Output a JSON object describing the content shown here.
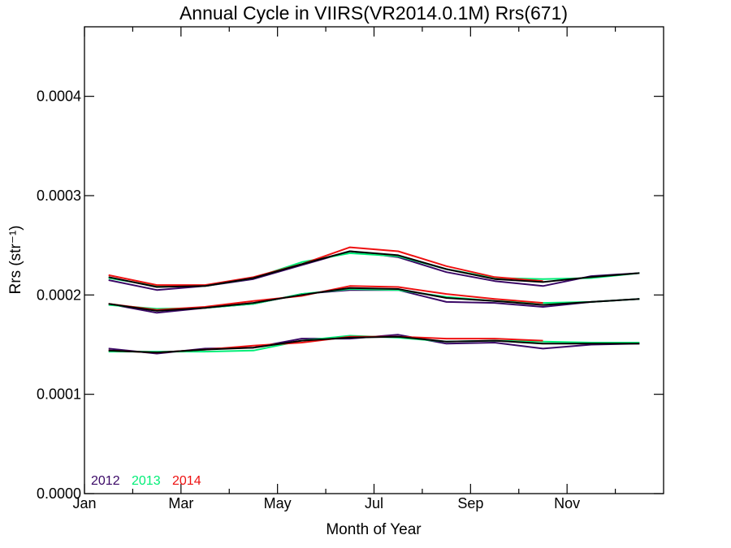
{
  "chart_data": {
    "type": "line",
    "title": "Annual Cycle in VIIRS(VR2014.0.1M) Rrs(671)",
    "xlabel": "Month of Year",
    "ylabel": "Rrs (str⁻¹)",
    "xlim": [
      0,
      12
    ],
    "ylim": [
      0.0,
      0.00047
    ],
    "x_ticks": [
      {
        "value": 0,
        "label": "Jan"
      },
      {
        "value": 2,
        "label": "Mar"
      },
      {
        "value": 4,
        "label": "May"
      },
      {
        "value": 6,
        "label": "Jul"
      },
      {
        "value": 8,
        "label": "Sep"
      },
      {
        "value": 10,
        "label": "Nov"
      }
    ],
    "y_ticks": [
      {
        "value": 0.0,
        "label": "0.0000"
      },
      {
        "value": 0.0001,
        "label": "0.0001"
      },
      {
        "value": 0.0002,
        "label": "0.0002"
      },
      {
        "value": 0.0003,
        "label": "0.0003"
      },
      {
        "value": 0.0004,
        "label": "0.0004"
      }
    ],
    "grid": false,
    "legend_position": "bottom-left",
    "legend": [
      {
        "label": "2012",
        "color": "#3a0866"
      },
      {
        "label": "2013",
        "color": "#00ee77"
      },
      {
        "label": "2014",
        "color": "#ee1111"
      }
    ],
    "series": [
      {
        "year": "2012",
        "color": "#3a0866",
        "group": "upper",
        "x": [
          0.5,
          1.5,
          2.5,
          3.5,
          4.5,
          5.5,
          6.5,
          7.5,
          8.5,
          9.5,
          10.5,
          11.5
        ],
        "values": [
          0.000215,
          0.000205,
          0.000209,
          0.000216,
          0.00023,
          0.000244,
          0.000238,
          0.000223,
          0.000214,
          0.000209,
          0.000219,
          0.000222
        ]
      },
      {
        "year": "2013",
        "color": "#00ee77",
        "group": "upper",
        "x": [
          0.5,
          1.5,
          2.5,
          3.5,
          4.5,
          5.5,
          6.5,
          7.5,
          8.5,
          9.5,
          10.5,
          11.5
        ],
        "values": [
          0.000217,
          0.000209,
          0.000209,
          0.000217,
          0.000233,
          0.000242,
          0.000239,
          0.000226,
          0.000217,
          0.000216,
          0.000217,
          0.000222
        ]
      },
      {
        "year": "2014",
        "color": "#ee1111",
        "group": "upper",
        "x": [
          0.5,
          1.5,
          2.5,
          3.5,
          4.5,
          5.5,
          6.5,
          7.5,
          8.5,
          9.5
        ],
        "values": [
          0.00022,
          0.00021,
          0.00021,
          0.000218,
          0.000231,
          0.000248,
          0.000244,
          0.000229,
          0.000218,
          0.000214
        ]
      },
      {
        "year": "mean",
        "color": "#000000",
        "group": "upper",
        "x": [
          0.5,
          1.5,
          2.5,
          3.5,
          4.5,
          5.5,
          6.5,
          7.5,
          8.5,
          9.5,
          10.5,
          11.5
        ],
        "values": [
          0.000218,
          0.000208,
          0.000209,
          0.000217,
          0.000231,
          0.000244,
          0.00024,
          0.000226,
          0.000216,
          0.000213,
          0.000218,
          0.000222
        ]
      },
      {
        "year": "2012",
        "color": "#3a0866",
        "group": "middle",
        "x": [
          0.5,
          1.5,
          2.5,
          3.5,
          4.5,
          5.5,
          6.5,
          7.5,
          8.5,
          9.5,
          10.5,
          11.5
        ],
        "values": [
          0.000191,
          0.000182,
          0.000187,
          0.000191,
          0.000201,
          0.000205,
          0.000205,
          0.000193,
          0.000192,
          0.000188,
          0.000193,
          0.000196
        ]
      },
      {
        "year": "2013",
        "color": "#00ee77",
        "group": "middle",
        "x": [
          0.5,
          1.5,
          2.5,
          3.5,
          4.5,
          5.5,
          6.5,
          7.5,
          8.5,
          9.5,
          10.5,
          11.5
        ],
        "values": [
          0.00019,
          0.000186,
          0.000187,
          0.000191,
          0.000201,
          0.000206,
          0.000205,
          0.000198,
          0.000194,
          0.000192,
          0.000193,
          0.000196
        ]
      },
      {
        "year": "2014",
        "color": "#ee1111",
        "group": "middle",
        "x": [
          0.5,
          1.5,
          2.5,
          3.5,
          4.5,
          5.5,
          6.5,
          7.5,
          8.5,
          9.5
        ],
        "values": [
          0.000191,
          0.000185,
          0.000188,
          0.000194,
          0.000199,
          0.000209,
          0.000208,
          0.000201,
          0.000196,
          0.000192
        ]
      },
      {
        "year": "mean",
        "color": "#000000",
        "group": "middle",
        "x": [
          0.5,
          1.5,
          2.5,
          3.5,
          4.5,
          5.5,
          6.5,
          7.5,
          8.5,
          9.5,
          10.5,
          11.5
        ],
        "values": [
          0.000191,
          0.000184,
          0.000187,
          0.000192,
          0.0002,
          0.000207,
          0.000206,
          0.000197,
          0.000194,
          0.00019,
          0.000193,
          0.000196
        ]
      },
      {
        "year": "2012",
        "color": "#3a0866",
        "group": "lower",
        "x": [
          0.5,
          1.5,
          2.5,
          3.5,
          4.5,
          5.5,
          6.5,
          7.5,
          8.5,
          9.5,
          10.5,
          11.5
        ],
        "values": [
          0.000146,
          0.000141,
          0.000146,
          0.000147,
          0.000156,
          0.000156,
          0.00016,
          0.000151,
          0.000152,
          0.000146,
          0.00015,
          0.000151
        ]
      },
      {
        "year": "2013",
        "color": "#00ee77",
        "group": "lower",
        "x": [
          0.5,
          1.5,
          2.5,
          3.5,
          4.5,
          5.5,
          6.5,
          7.5,
          8.5,
          9.5,
          10.5,
          11.5
        ],
        "values": [
          0.000143,
          0.000143,
          0.000143,
          0.000144,
          0.000154,
          0.000159,
          0.000157,
          0.000153,
          0.000154,
          0.000153,
          0.000152,
          0.000152
        ]
      },
      {
        "year": "2014",
        "color": "#ee1111",
        "group": "lower",
        "x": [
          0.5,
          1.5,
          2.5,
          3.5,
          4.5,
          5.5,
          6.5,
          7.5,
          8.5,
          9.5
        ],
        "values": [
          0.000144,
          0.000142,
          0.000145,
          0.000149,
          0.000152,
          0.000158,
          0.000158,
          0.000156,
          0.000156,
          0.000154
        ]
      },
      {
        "year": "mean",
        "color": "#000000",
        "group": "lower",
        "x": [
          0.5,
          1.5,
          2.5,
          3.5,
          4.5,
          5.5,
          6.5,
          7.5,
          8.5,
          9.5,
          10.5,
          11.5
        ],
        "values": [
          0.000144,
          0.000142,
          0.000145,
          0.000147,
          0.000154,
          0.000157,
          0.000158,
          0.000153,
          0.000154,
          0.000151,
          0.000151,
          0.000151
        ]
      }
    ]
  }
}
